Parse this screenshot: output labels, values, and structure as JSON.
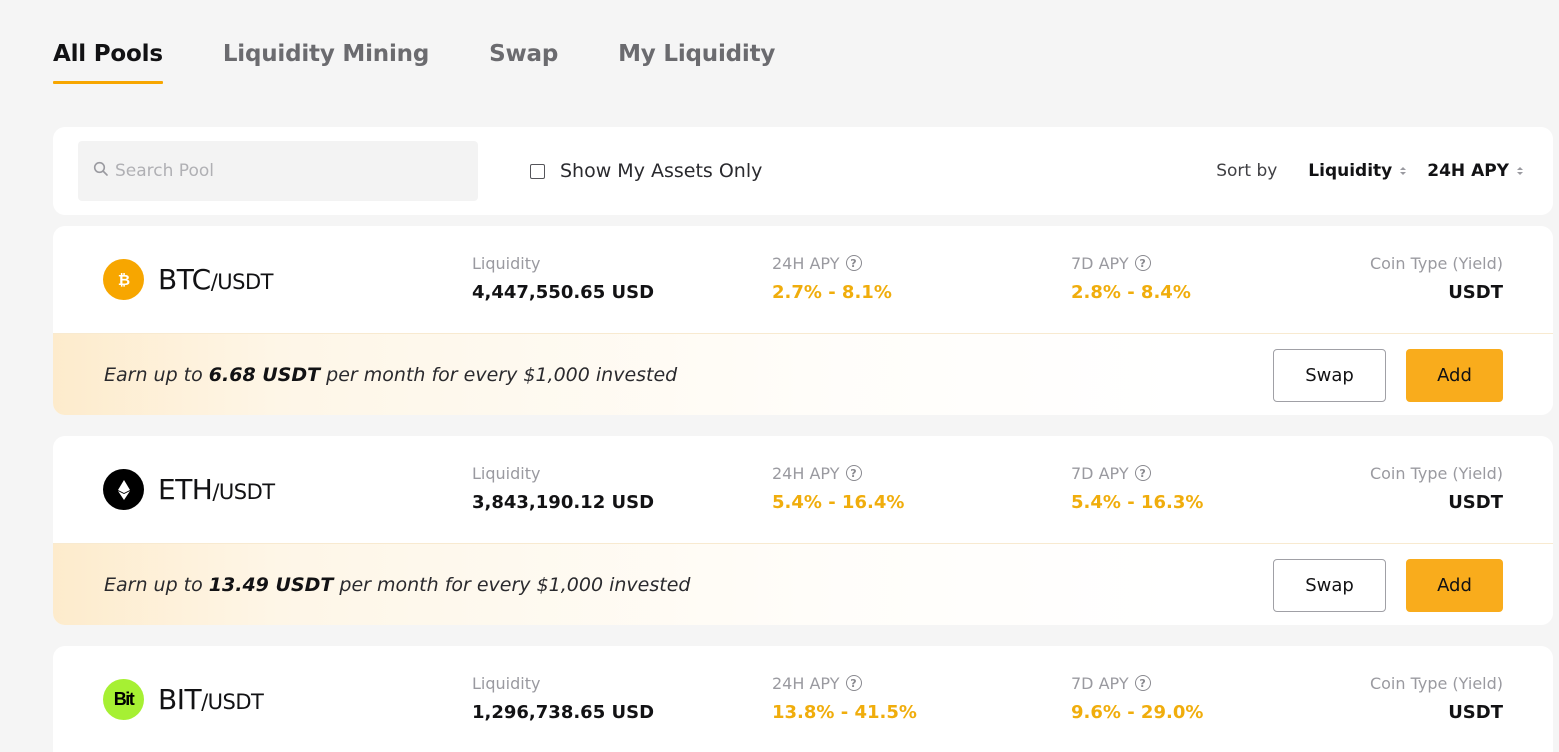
{
  "tabs": [
    {
      "label": "All Pools",
      "active": true
    },
    {
      "label": "Liquidity Mining",
      "active": false
    },
    {
      "label": "Swap",
      "active": false
    },
    {
      "label": "My Liquidity",
      "active": false
    }
  ],
  "filters": {
    "search_placeholder": "Search Pool",
    "show_my_assets_label": "Show My Assets Only",
    "show_my_assets_checked": false,
    "sort_label": "Sort by",
    "sort_options": [
      "Liquidity",
      "24H APY"
    ]
  },
  "colors": {
    "accent": "#f7a600",
    "yield_text": "#f0ad0c",
    "add_button": "#f9ac1c"
  },
  "labels": {
    "liquidity": "Liquidity",
    "apy_24h": "24H APY",
    "apy_7d": "7D APY",
    "coin_type": "Coin Type (Yield)",
    "swap_button": "Swap",
    "add_button": "Add"
  },
  "pools": [
    {
      "base": "BTC",
      "quote": "/USDT",
      "icon": "bitcoin-icon",
      "icon_color": "#f7a600",
      "liquidity": "4,447,550.65 USD",
      "apy_24h": "2.7% - 8.1%",
      "apy_7d": "2.8% - 8.4%",
      "coin_type": "USDT",
      "earn_prefix": "Earn up to ",
      "earn_amount": "6.68 USDT",
      "earn_suffix": " per month for every $1,000 invested"
    },
    {
      "base": "ETH",
      "quote": "/USDT",
      "icon": "ethereum-icon",
      "icon_color": "#000000",
      "liquidity": "3,843,190.12 USD",
      "apy_24h": "5.4% - 16.4%",
      "apy_7d": "5.4% - 16.3%",
      "coin_type": "USDT",
      "earn_prefix": "Earn up to ",
      "earn_amount": "13.49 USDT",
      "earn_suffix": " per month for every $1,000 invested"
    },
    {
      "base": "BIT",
      "quote": "/USDT",
      "icon": "bit-token-icon",
      "icon_color": "#a6f033",
      "icon_text": "Bit",
      "liquidity": "1,296,738.65 USD",
      "apy_24h": "13.8% - 41.5%",
      "apy_7d": "9.6% - 29.0%",
      "coin_type": "USDT"
    }
  ]
}
